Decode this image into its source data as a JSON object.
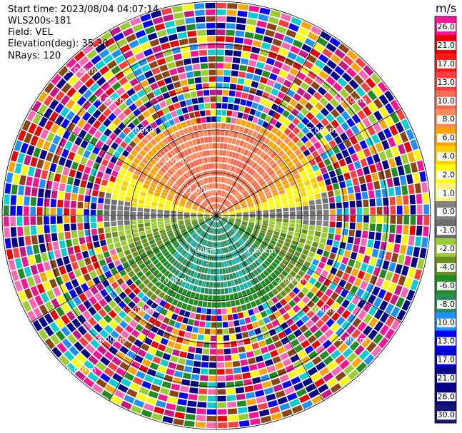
{
  "header": {
    "start_time": "Start time: 2023/08/04 04:07:14",
    "instrument": "WLS200s-181",
    "field": "Field: VEL",
    "elevation": "Elevation(deg): 35.30",
    "nrays": "NRays: 120"
  },
  "ring_labels": {
    "r1": "1.00km",
    "r2": "2.00km",
    "r3": "3.00km",
    "r4": "4.00km",
    "r5": "5.00km"
  },
  "colorbar": {
    "unit": "m/s",
    "ticks": [
      "26.0",
      "21.0",
      "17.0",
      "13.0",
      "10.0",
      "8.0",
      "6.0",
      "4.0",
      "2.0",
      "1.0",
      "0.0",
      "-1.0",
      "-2.0",
      "-4.0",
      "-6.0",
      "-8.0",
      "-10.0",
      "-13.0",
      "-17.0",
      "-21.0",
      "-26.0",
      "-30.0"
    ],
    "colors": [
      "#ff1493",
      "#e60000",
      "#ff1a1a",
      "#ff4040",
      "#ff6a50",
      "#ff8c5a",
      "#ffa500",
      "#ffd000",
      "#ffff00",
      "#fff57a",
      "#808080",
      "#6e6e6e",
      "#9acd32",
      "#6b8e23",
      "#228b22",
      "#2e8b57",
      "#1e90ff",
      "#0000ff",
      "#0000cd",
      "#00008b",
      "#000080",
      "#191970"
    ]
  },
  "noise_palette": [
    "#ff1493",
    "#e60000",
    "#ff4040",
    "#ffa500",
    "#ffff00",
    "#9acd32",
    "#228b22",
    "#1e90ff",
    "#0000ff",
    "#00008b",
    "#000080",
    "#ff69b4",
    "#c71585",
    "#8b4513",
    "#00ced1"
  ]
}
